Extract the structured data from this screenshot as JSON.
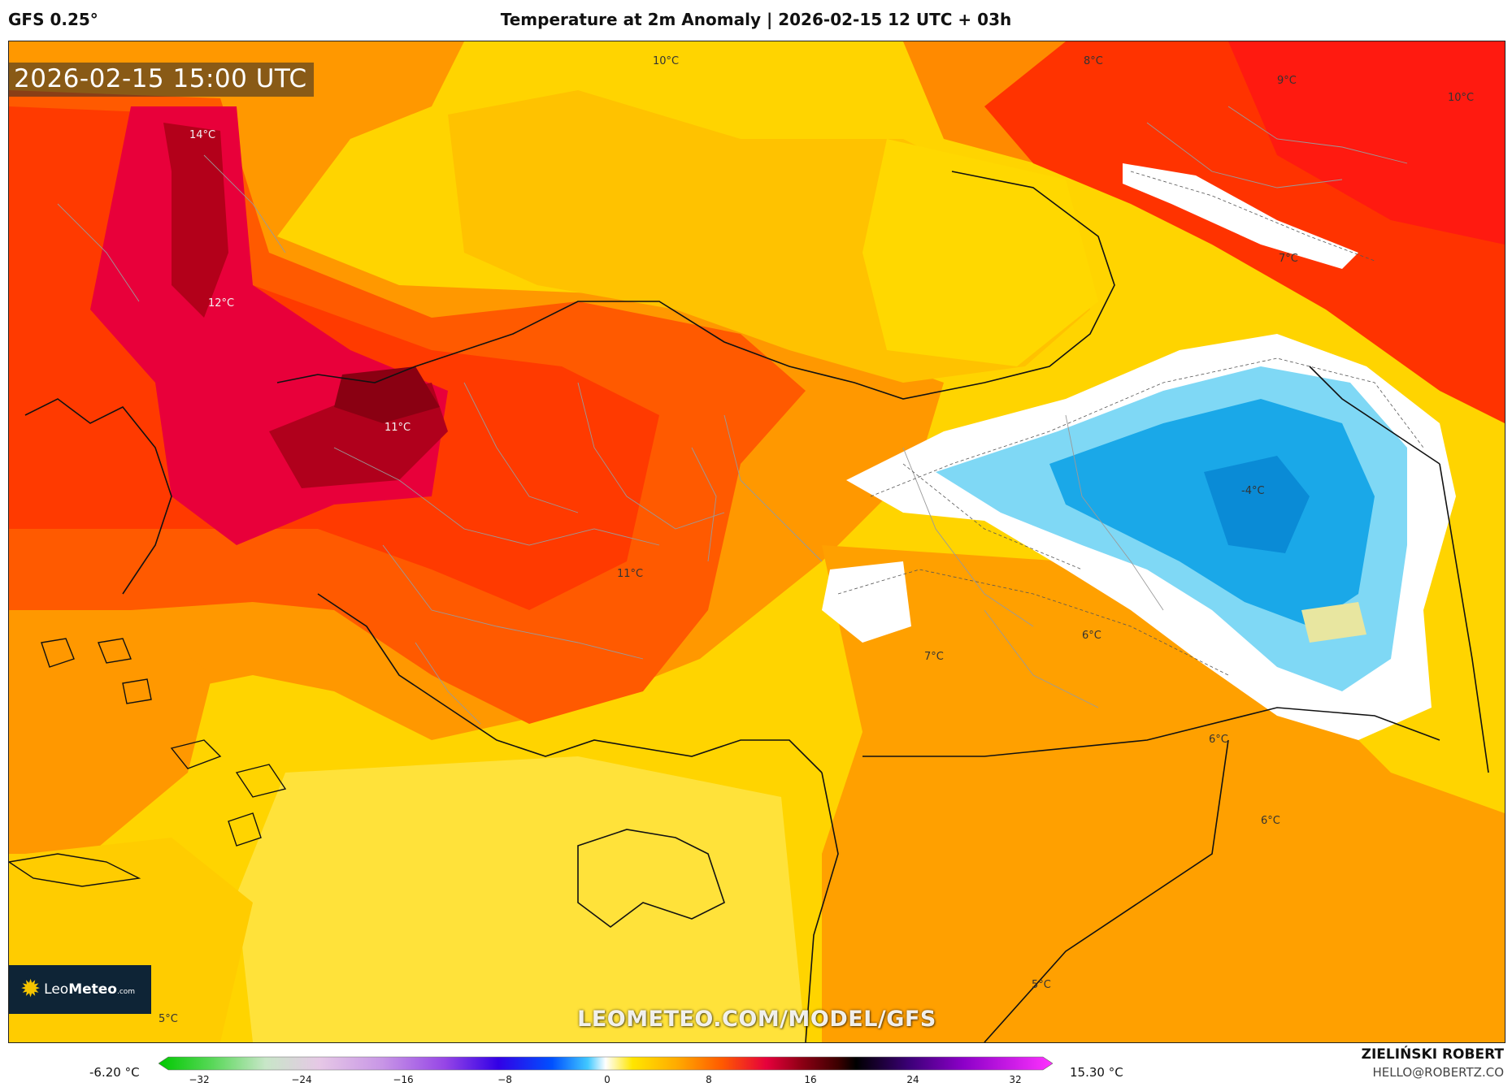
{
  "header": {
    "model": "GFS 0.25°",
    "title": "Temperature at 2m Anomaly | 2026-02-15 12 UTC + 03h"
  },
  "map": {
    "timestamp": "2026-02-15 15:00 UTC",
    "watermark": "LEOMETEO.COM/MODEL/GFS",
    "labels": [
      {
        "text": "10°C"
      },
      {
        "text": "8°C"
      },
      {
        "text": "9°C"
      },
      {
        "text": "10°C"
      },
      {
        "text": "14°C"
      },
      {
        "text": "12°C"
      },
      {
        "text": "7°C"
      },
      {
        "text": "11°C"
      },
      {
        "text": "-4°C"
      },
      {
        "text": "11°C"
      },
      {
        "text": "6°C"
      },
      {
        "text": "7°C"
      },
      {
        "text": "6°C"
      },
      {
        "text": "6°C"
      },
      {
        "text": "5°C"
      },
      {
        "text": "5°C"
      }
    ]
  },
  "logo": {
    "brand_light": "Leo",
    "brand_bold": "Meteo",
    "suffix": ".com"
  },
  "legend": {
    "min_label": "-6.20 °C",
    "max_label": "15.30 °C",
    "ticks": [
      "−32",
      "−24",
      "−16",
      "−8",
      "0",
      "8",
      "16",
      "24",
      "32"
    ]
  },
  "credit": {
    "name": "ZIELIŃSKI ROBERT",
    "email": "HELLO@ROBERTZ.CO"
  },
  "colors": {
    "yellow": "#ffd400",
    "orange": "#ff9800",
    "red": "#ff3300",
    "crimson": "#e8003a",
    "dark_red": "#a00018",
    "light_blue": "#7fd8f5",
    "blue": "#1aa8e8",
    "white": "#ffffff"
  }
}
